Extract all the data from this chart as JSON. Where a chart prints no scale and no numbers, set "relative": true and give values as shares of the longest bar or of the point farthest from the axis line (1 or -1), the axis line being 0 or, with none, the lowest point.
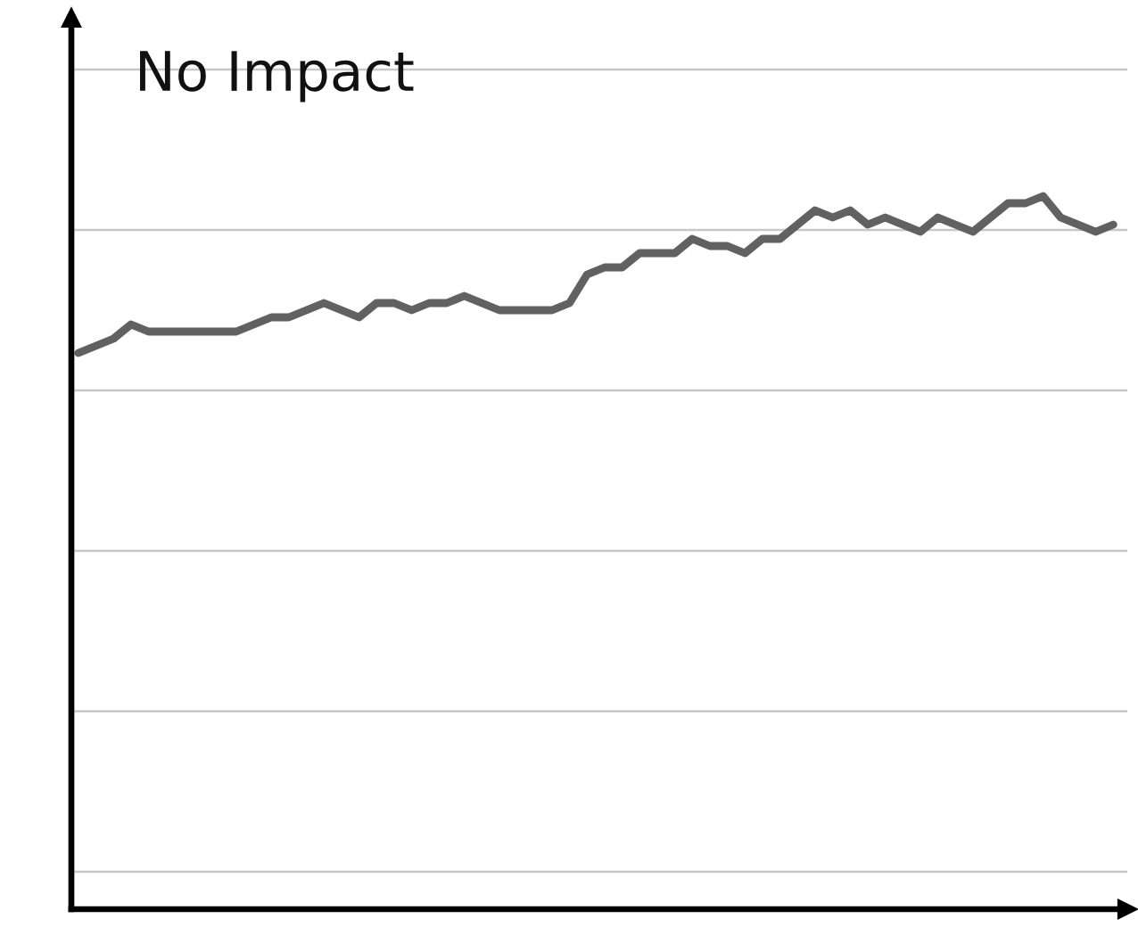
{
  "chart_data": {
    "type": "line",
    "title": "No Impact",
    "relative": true,
    "grid": "y",
    "categories": [
      null,
      null,
      null,
      null,
      null,
      null,
      null,
      null,
      null,
      null,
      null,
      null,
      null,
      null,
      null,
      null,
      null,
      null,
      null,
      null,
      null,
      null,
      null,
      null,
      null,
      null,
      null,
      null,
      null,
      null,
      null,
      null,
      null,
      null,
      null,
      null,
      null,
      null,
      null,
      null,
      null,
      null,
      null,
      null,
      null,
      null,
      null,
      null,
      null,
      null,
      null,
      null,
      null,
      null,
      null,
      null,
      null,
      null,
      null,
      null
    ],
    "series": [
      {
        "color": "#616161",
        "values": [
          0.78,
          0.79,
          0.8,
          0.82,
          0.81,
          0.81,
          0.81,
          0.81,
          0.81,
          0.81,
          0.82,
          0.83,
          0.83,
          0.84,
          0.85,
          0.84,
          0.83,
          0.85,
          0.85,
          0.84,
          0.85,
          0.85,
          0.86,
          0.85,
          0.84,
          0.84,
          0.84,
          0.84,
          0.85,
          0.89,
          0.9,
          0.9,
          0.92,
          0.92,
          0.92,
          0.94,
          0.93,
          0.93,
          0.92,
          0.94,
          0.94,
          0.96,
          0.98,
          0.97,
          0.98,
          0.96,
          0.97,
          0.96,
          0.95,
          0.97,
          0.96,
          0.95,
          0.97,
          0.99,
          0.99,
          1.0,
          0.97,
          0.96,
          0.95,
          0.96
        ]
      }
    ]
  }
}
